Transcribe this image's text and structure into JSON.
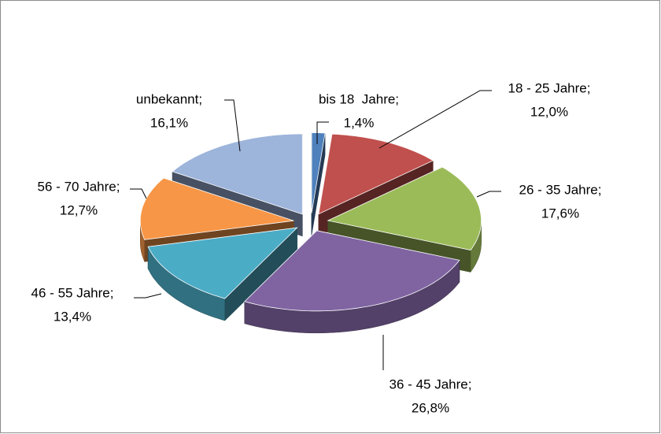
{
  "chart_data": {
    "type": "pie",
    "categories": [
      "bis 18  Jahre;",
      "18 - 25 Jahre;",
      "26 - 35 Jahre;",
      "36 - 45 Jahre;",
      "46 - 55 Jahre;",
      "56 - 70 Jahre;",
      "unbekannt;"
    ],
    "values": [
      1.4,
      12.0,
      17.6,
      26.8,
      13.4,
      12.7,
      16.1
    ],
    "value_labels": [
      "1,4%",
      "12,0%",
      "17,6%",
      "26,8%",
      "13,4%",
      "12,7%",
      "16,1%"
    ],
    "colors": [
      "#4f81bd",
      "#c0504d",
      "#9bbb59",
      "#8064a2",
      "#4bacc6",
      "#f79646",
      "#9db4db"
    ]
  }
}
